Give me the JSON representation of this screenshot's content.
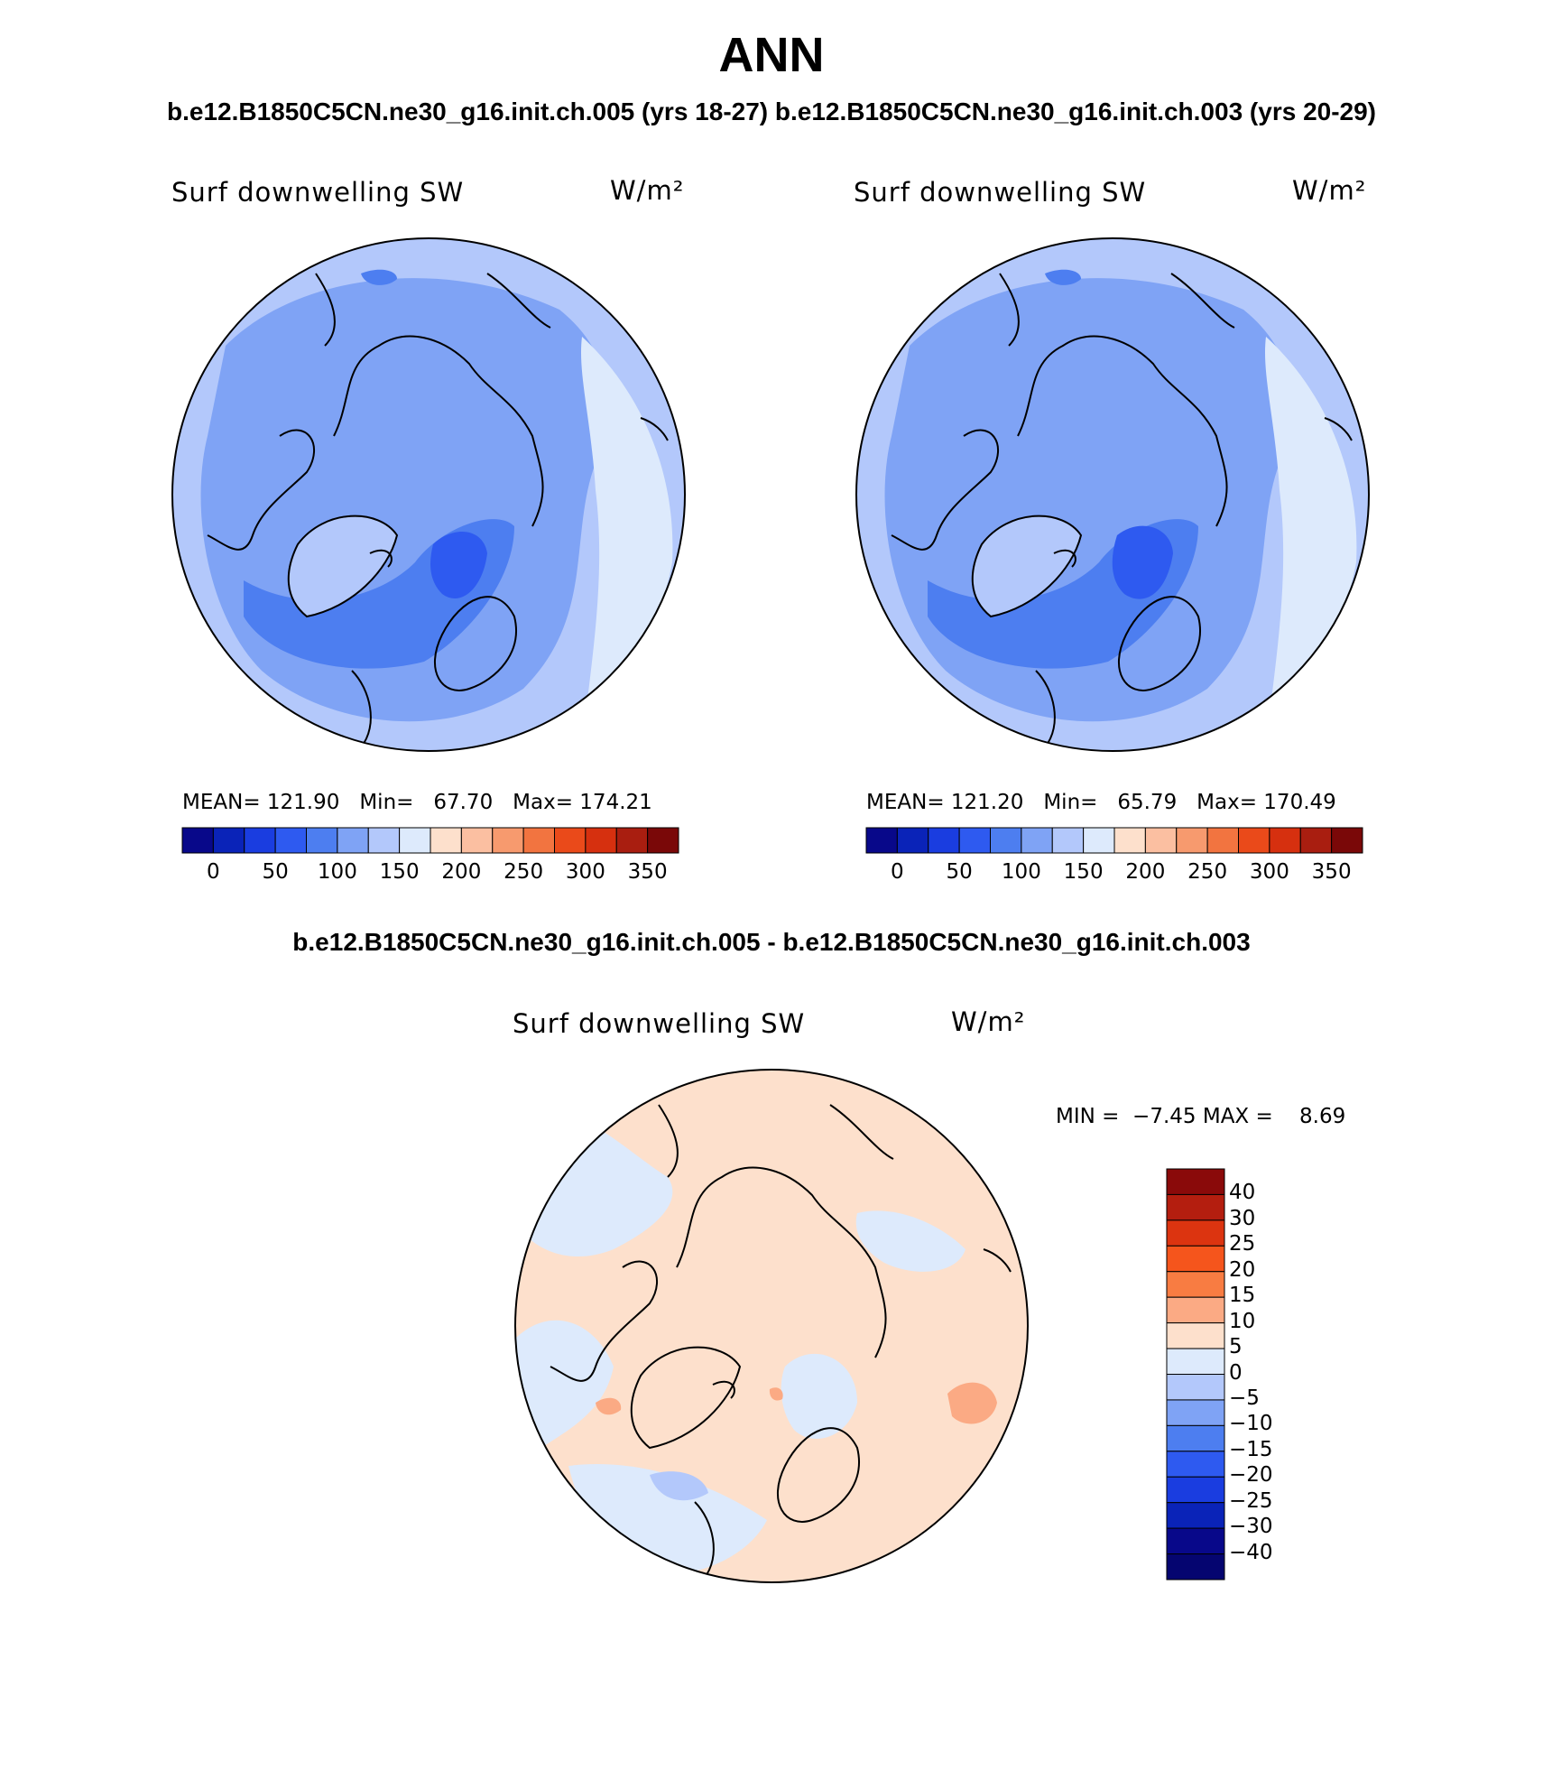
{
  "title": "ANN",
  "top_caption": "b.e12.B1850C5CN.ne30_g16.init.ch.005 (yrs 18-27) b.e12.B1850C5CN.ne30_g16.init.ch.003 (yrs 20-29)",
  "diff_caption": "b.e12.B1850C5CN.ne30_g16.init.ch.005 - b.e12.B1850C5CN.ne30_g16.init.ch.003",
  "chart_data": [
    {
      "type": "map",
      "projection": "polar-stereographic-north",
      "case": "b.e12.B1850C5CN.ne30_g16.init.ch.005 (yrs 18-27)",
      "variable": "Surf downwelling SW",
      "units": "W/m²",
      "stats": {
        "mean_label": "MEAN=",
        "mean": "121.90",
        "min_label": "Min=",
        "min": "67.70",
        "max_label": "Max=",
        "max": "174.21"
      },
      "colorbar": {
        "levels": [
          "0",
          "50",
          "100",
          "150",
          "200",
          "250",
          "300",
          "350"
        ],
        "colors": [
          "#08088a",
          "#0a23b8",
          "#1a3de0",
          "#2e5af0",
          "#4d7ef0",
          "#7fa3f5",
          "#b3c8fb",
          "#ddeafc",
          "#fde0cc",
          "#fbbfa1",
          "#f79a6e",
          "#f27440",
          "#ea4a1a",
          "#d6300f",
          "#a91e10",
          "#7a0808"
        ]
      },
      "field_summary": "Values mostly 100-150 W/m² over the Arctic basin, 150-200 at lower latitudes near the rim, minimum 50-100 over the North Atlantic near Iceland/Norway"
    },
    {
      "type": "map",
      "projection": "polar-stereographic-north",
      "case": "b.e12.B1850C5CN.ne30_g16.init.ch.003 (yrs 20-29)",
      "variable": "Surf downwelling SW",
      "units": "W/m²",
      "stats": {
        "mean_label": "MEAN=",
        "mean": "121.20",
        "min_label": "Min=",
        "min": "65.79",
        "max_label": "Max=",
        "max": "170.49"
      },
      "colorbar": {
        "levels": [
          "0",
          "50",
          "100",
          "150",
          "200",
          "250",
          "300",
          "350"
        ],
        "colors": [
          "#08088a",
          "#0a23b8",
          "#1a3de0",
          "#2e5af0",
          "#4d7ef0",
          "#7fa3f5",
          "#b3c8fb",
          "#ddeafc",
          "#fde0cc",
          "#fbbfa1",
          "#f79a6e",
          "#f27440",
          "#ea4a1a",
          "#d6300f",
          "#a91e10",
          "#7a0808"
        ]
      },
      "field_summary": "Similar pattern to case 005, slightly lower maximum"
    },
    {
      "type": "map",
      "projection": "polar-stereographic-north",
      "case": "b.e12.B1850C5CN.ne30_g16.init.ch.005 - b.e12.B1850C5CN.ne30_g16.init.ch.003",
      "variable": "Surf downwelling SW",
      "units": "W/m²",
      "stats": {
        "min_label": "MIN =",
        "min": "−7.45",
        "max_label": "MAX =",
        "max": "8.69"
      },
      "colorbar": {
        "levels": [
          "40",
          "30",
          "25",
          "20",
          "15",
          "10",
          "5",
          "0",
          "−5",
          "−10",
          "−15",
          "−20",
          "−25",
          "−30",
          "−40"
        ],
        "colors": [
          "#8a0a0a",
          "#b41e0f",
          "#dc3410",
          "#f5551c",
          "#f87c42",
          "#fbaa84",
          "#fde0cc",
          "#ddeafc",
          "#b3c8fb",
          "#7fa3f5",
          "#4d7ef0",
          "#2e5af0",
          "#1a3de0",
          "#0a23b8",
          "#08088a",
          "#050570"
        ]
      },
      "field_summary": "Differences mostly within ±5 W/m², scattered 5-10 positive patches"
    }
  ],
  "palette": {
    "map_base": "#7fa3f5",
    "map_light": "#b3c8fb",
    "map_lighter": "#ddeafc",
    "map_dark": "#4d7ef0",
    "map_darker": "#2e5af0",
    "diff_pos": "#fde0cc",
    "diff_pos2": "#fbaa84",
    "diff_neg": "#ddeafc",
    "diff_neg2": "#b3c8fb"
  }
}
